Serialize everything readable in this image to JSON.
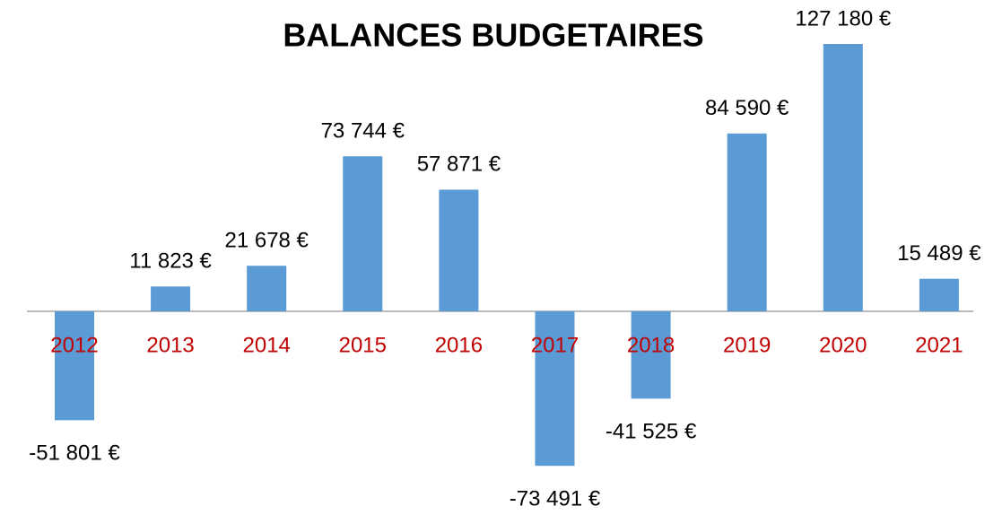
{
  "chart_data": {
    "type": "bar",
    "title": "BALANCES BUDGETAIRES",
    "categories": [
      "2012",
      "2013",
      "2014",
      "2015",
      "2016",
      "2017",
      "2018",
      "2019",
      "2020",
      "2021"
    ],
    "values": [
      -51801,
      11823,
      21678,
      73744,
      57871,
      -73491,
      -41525,
      84590,
      127180,
      15489
    ],
    "value_labels": [
      "-51 801 €",
      "11 823 €",
      "21 678 €",
      "73 744 €",
      "57 871 €",
      "-73 491 €",
      "-41 525 €",
      "84 590 €",
      "127 180 €",
      "15 489 €"
    ],
    "color": "#5b9bd5",
    "category_color": "#c00000"
  }
}
